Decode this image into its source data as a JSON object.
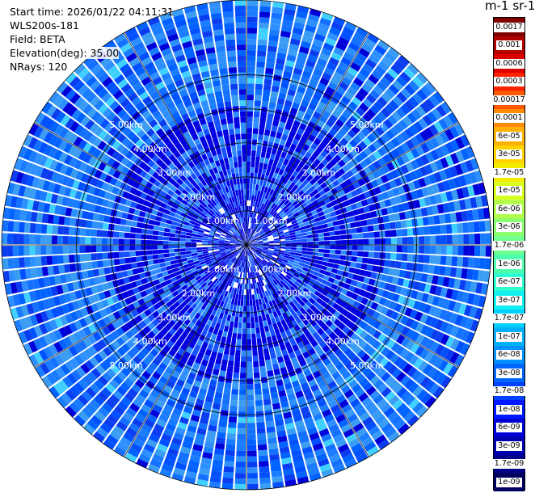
{
  "header": {
    "start_time": "Start time: 2026/01/22 04:11:31",
    "instrument": "WLS200s-181",
    "field": "Field: BETA",
    "elevation": "Elevation(deg): 35.00",
    "nrays": "NRays: 120"
  },
  "colorbar": {
    "title": "m-1 sr-1",
    "labels": [
      "0.0017",
      "0.001",
      "0.0006",
      "0.0003",
      "0.00017",
      "0.0001",
      "6e-05",
      "3e-05",
      "1.7e-05",
      "1e-05",
      "6e-06",
      "3e-06",
      "1.7e-06",
      "1e-06",
      "6e-07",
      "3e-07",
      "1.7e-07",
      "1e-07",
      "6e-08",
      "3e-08",
      "1.7e-08",
      "1e-08",
      "6e-09",
      "3e-09",
      "1.7e-09",
      "1e-09"
    ],
    "colors": [
      "#800000",
      "#b00000",
      "#dd0000",
      "#ff2000",
      "#ff5a00",
      "#ff8c00",
      "#ffb000",
      "#ffd200",
      "#f4ec00",
      "#d8ff20",
      "#b2ff4a",
      "#8cff6e",
      "#6eff90",
      "#4effb0",
      "#2effd0",
      "#10f0f0",
      "#00d0ff",
      "#00b0ff",
      "#0090ff",
      "#0066ff",
      "#0040ff",
      "#0018ff",
      "#0000d8",
      "#0000b0",
      "#000088",
      "#000060"
    ]
  },
  "chart_data": {
    "type": "heatmap",
    "projection": "polar PPI",
    "title": "",
    "field": "BETA",
    "units": "m-1 sr-1",
    "scale": "log",
    "color_range": [
      1e-09,
      0.0017
    ],
    "elevation_deg": 35.0,
    "n_rays": 120,
    "range_rings_km": [
      1.0,
      2.0,
      3.0,
      4.0,
      5.0
    ],
    "ring_labels": [
      "1.00km",
      "2.00km",
      "3.00km",
      "4.00km",
      "5.00km"
    ],
    "max_range_km": 7.2,
    "grid": true,
    "dominant_value_range": [
      3e-09,
      6e-08
    ]
  }
}
